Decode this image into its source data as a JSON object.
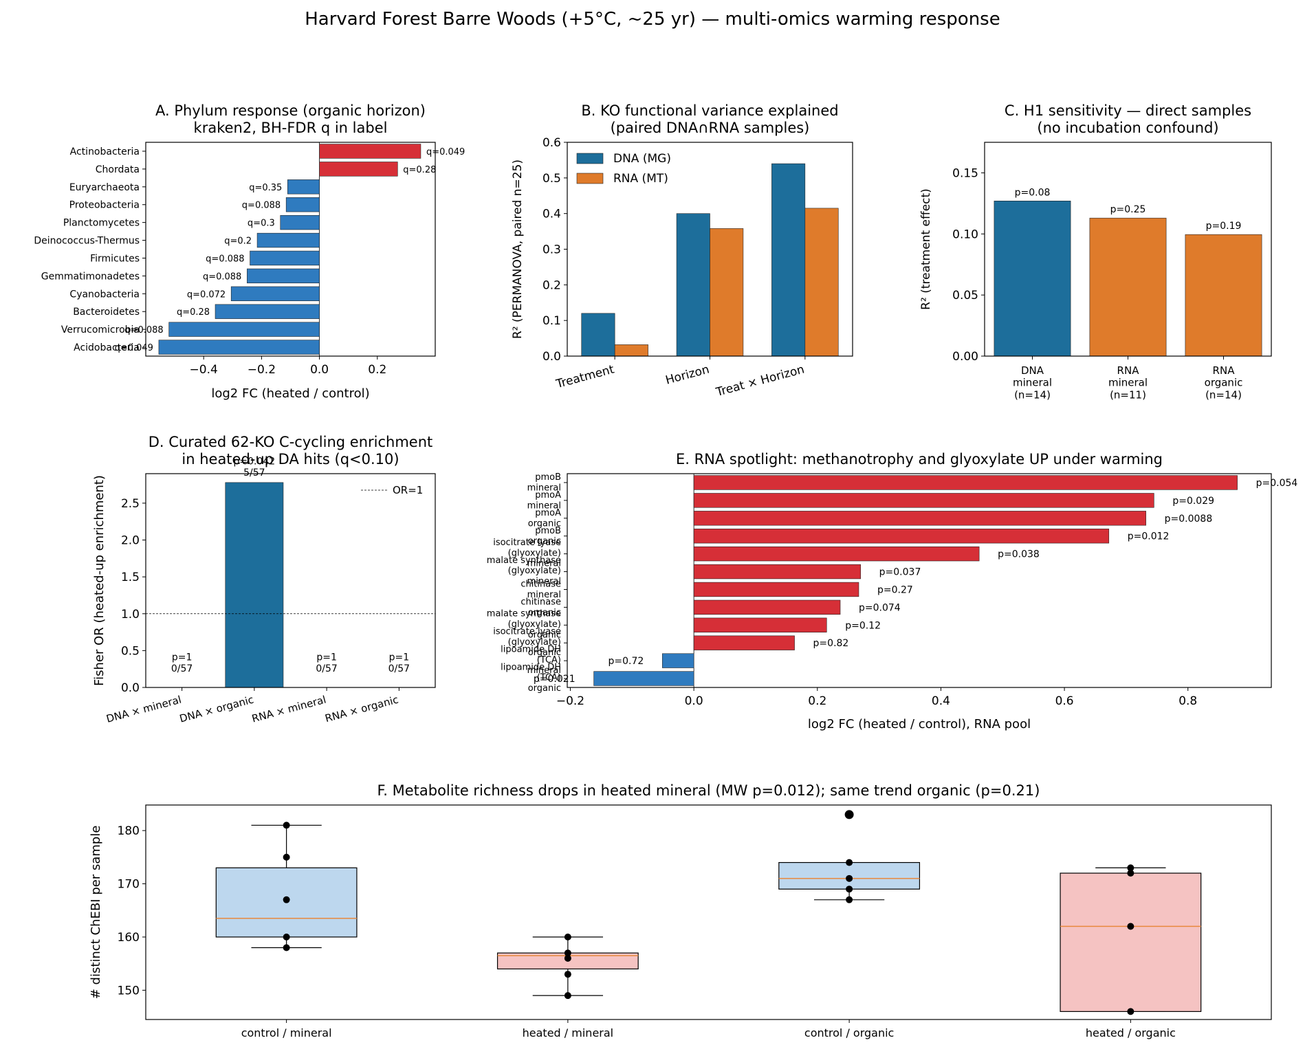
{
  "figure": {
    "suptitle": "Harvard Forest Barre Woods (+5°C, ~25 yr) — multi-omics warming response"
  },
  "chart_data": [
    {
      "id": "A",
      "type": "bar",
      "orientation": "horizontal",
      "title": "A. Phylum response (organic horizon)\nkraken2, BH-FDR q in label",
      "xlabel": "log2 FC (heated / control)",
      "ylabel": "",
      "xlim": [
        -0.6,
        0.4
      ],
      "xticks": [
        -0.4,
        -0.2,
        0.0,
        0.2
      ],
      "xtick_labels": [
        "−0.4",
        "−0.2",
        "0.0",
        "0.2"
      ],
      "categories": [
        "Actinobacteria",
        "Chordata",
        "Euryarchaeota",
        "Proteobacteria",
        "Planctomycetes",
        "Deinococcus-Thermus",
        "Firmicutes",
        "Gemmatimonadetes",
        "Cyanobacteria",
        "Bacteroidetes",
        "Verrucomicrobia",
        "Acidobacteria"
      ],
      "values": [
        0.35,
        0.27,
        -0.11,
        -0.115,
        -0.135,
        -0.215,
        -0.24,
        -0.25,
        -0.305,
        -0.36,
        -0.52,
        -0.555
      ],
      "labels": [
        "q=0.049",
        "q=0.28",
        "q=0.35",
        "q=0.088",
        "q=0.3",
        "q=0.2",
        "q=0.088",
        "q=0.088",
        "q=0.072",
        "q=0.28",
        "q=0.088",
        "q=0.049"
      ],
      "colors": {
        "up": "#d62f37",
        "down": "#2f7bbf"
      },
      "grid": false
    },
    {
      "id": "B",
      "type": "bar",
      "title": "B. KO functional variance explained\n(paired DNA∩RNA samples)",
      "xlabel": "",
      "ylabel": "R² (PERMANOVA, paired n=25)",
      "ylim": [
        0,
        0.6
      ],
      "yticks": [
        0.0,
        0.1,
        0.2,
        0.3,
        0.4,
        0.5,
        0.6
      ],
      "ytick_labels": [
        "0.0",
        "0.1",
        "0.2",
        "0.3",
        "0.4",
        "0.5",
        "0.6"
      ],
      "categories": [
        "Treatment",
        "Horizon",
        "Treat × Horizon"
      ],
      "series": [
        {
          "name": "DNA (MG)",
          "values": [
            0.12,
            0.4,
            0.54
          ],
          "color": "#1d6e9b"
        },
        {
          "name": "RNA (MT)",
          "values": [
            0.032,
            0.358,
            0.415
          ],
          "color": "#df7b2b"
        }
      ],
      "legend": "top-left",
      "grid": false
    },
    {
      "id": "C",
      "type": "bar",
      "title": "C. H1 sensitivity — direct samples\n(no incubation confound)",
      "xlabel": "",
      "ylabel": "R² (treatment effect)",
      "ylim": [
        0,
        0.175
      ],
      "yticks": [
        0.0,
        0.05,
        0.1,
        0.15
      ],
      "ytick_labels": [
        "0.00",
        "0.05",
        "0.10",
        "0.15"
      ],
      "categories": [
        "DNA\nmineral\n(n=14)",
        "RNA\nmineral\n(n=11)",
        "RNA\norganic\n(n=14)"
      ],
      "values": [
        0.127,
        0.113,
        0.0995
      ],
      "labels": [
        "p=0.08",
        "p=0.25",
        "p=0.19"
      ],
      "colors": [
        "#1d6e9b",
        "#df7b2b",
        "#df7b2b"
      ],
      "grid": false
    },
    {
      "id": "D",
      "type": "bar",
      "title": "D. Curated 62-KO C-cycling enrichment\nin heated-up DA hits (q<0.10)",
      "xlabel": "",
      "ylabel": "Fisher OR (heated-up enrichment)",
      "ylim": [
        0,
        2.9
      ],
      "yticks": [
        0.0,
        0.5,
        1.0,
        1.5,
        2.0,
        2.5
      ],
      "ytick_labels": [
        "0.0",
        "0.5",
        "1.0",
        "1.5",
        "2.0",
        "2.5"
      ],
      "categories": [
        "DNA × mineral",
        "DNA × organic",
        "RNA × mineral",
        "RNA × organic"
      ],
      "values": [
        0,
        2.78,
        0,
        0
      ],
      "labels": [
        "p=1\n0/57",
        "p=0.042\n5/57",
        "p=1\n0/57",
        "p=1\n0/57"
      ],
      "reference_line": {
        "value": 1.0,
        "label": "OR=1"
      },
      "color": "#1d6e9b",
      "legend": "top-right",
      "grid": false
    },
    {
      "id": "E",
      "type": "bar",
      "orientation": "horizontal",
      "title": "E. RNA spotlight: methanotrophy and glyoxylate UP under warming",
      "xlabel": "log2 FC (heated / control), RNA pool",
      "ylabel": "",
      "xlim": [
        -0.205,
        0.935
      ],
      "xticks": [
        -0.2,
        0.0,
        0.2,
        0.4,
        0.6,
        0.8
      ],
      "xtick_labels": [
        "−0.2",
        "0.0",
        "0.2",
        "0.4",
        "0.6",
        "0.8"
      ],
      "categories": [
        "pmoB\nmineral",
        "pmoA\nmineral",
        "pmoA\norganic",
        "pmoB\norganic",
        "isocitrate lyase\n(glyoxylate)\nmineral",
        "malate synthase\n(glyoxylate)\nmineral",
        "chitinase\nmineral",
        "chitinase\norganic",
        "malate synthase\n(glyoxylate)\norganic",
        "isocitrate lyase\n(glyoxylate)\norganic",
        "lipoamide DH\n(TCA)\nmineral",
        "lipoamide DH\n(TCA)\norganic"
      ],
      "values": [
        0.88,
        0.745,
        0.732,
        0.672,
        0.462,
        0.27,
        0.267,
        0.237,
        0.215,
        0.163,
        -0.051,
        -0.162
      ],
      "labels": [
        "p=0.054",
        "p=0.029",
        "p=0.0088",
        "p=0.012",
        "p=0.038",
        "p=0.037",
        "p=0.27",
        "p=0.074",
        "p=0.12",
        "p=0.82",
        "p=0.72",
        "p=0.021"
      ],
      "colors": {
        "up": "#d62f37",
        "down": "#2f7bbf"
      },
      "grid": false
    },
    {
      "id": "F",
      "type": "box",
      "title": "F. Metabolite richness drops in heated mineral (MW p=0.012); same trend organic (p=0.21)",
      "xlabel": "",
      "ylabel": "# distinct ChEBI per sample",
      "ylim": [
        144.5,
        184.8
      ],
      "yticks": [
        150,
        160,
        170,
        180
      ],
      "ytick_labels": [
        "150",
        "160",
        "170",
        "180"
      ],
      "categories": [
        "control / mineral",
        "heated / mineral",
        "control / organic",
        "heated / organic"
      ],
      "boxes": [
        {
          "q1": 160,
          "median": 163.5,
          "q3": 173,
          "whislo": 158,
          "whishi": 181,
          "points": [
            181,
            175,
            167,
            160,
            158
          ],
          "fliers": [],
          "color": "#bdd7ee"
        },
        {
          "q1": 154,
          "median": 156.5,
          "q3": 157,
          "whislo": 149,
          "whishi": 160,
          "points": [
            160,
            157,
            156,
            153,
            149
          ],
          "fliers": [],
          "color": "#f5c3c2"
        },
        {
          "q1": 169,
          "median": 171,
          "q3": 174,
          "whislo": 167,
          "whishi": 174,
          "points": [
            174,
            171,
            169,
            167
          ],
          "fliers": [
            183
          ],
          "color": "#bdd7ee"
        },
        {
          "q1": 146,
          "median": 162,
          "q3": 172,
          "whislo": 146,
          "whishi": 173,
          "points": [
            173,
            172,
            162,
            146
          ],
          "fliers": [],
          "color": "#f5c3c2"
        }
      ],
      "median_color": "#e8883b",
      "grid": false
    }
  ]
}
